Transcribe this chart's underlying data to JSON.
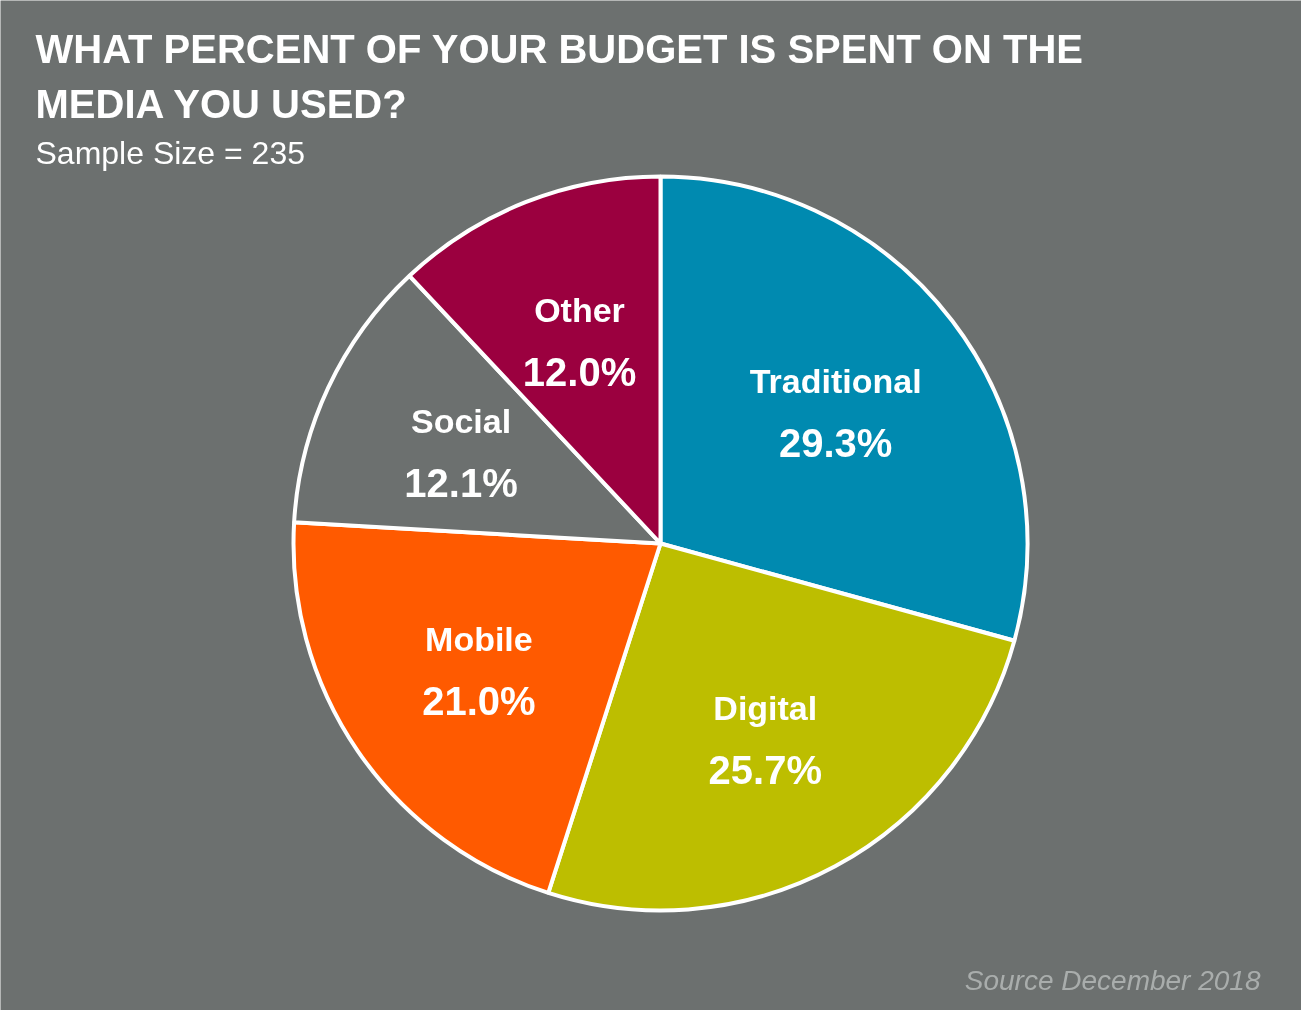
{
  "chart_data": {
    "type": "pie",
    "title": "WHAT PERCENT OF YOUR BUDGET IS SPENT ON THE MEDIA YOU USED?",
    "subtitle": "Sample Size = 235",
    "categories": [
      "Traditional",
      "Digital",
      "Mobile",
      "Social",
      "Other"
    ],
    "values": [
      29.3,
      25.7,
      21.0,
      12.1,
      12.0
    ],
    "value_labels": [
      "29.3%",
      "25.7%",
      "21.0%",
      "12.1%",
      "12.0%"
    ],
    "colors": [
      "#008ab0",
      "#bdbe00",
      "#ff5a00",
      "#6c706f",
      "#9b003f"
    ],
    "annotations": [
      "Source December 2018"
    ]
  }
}
